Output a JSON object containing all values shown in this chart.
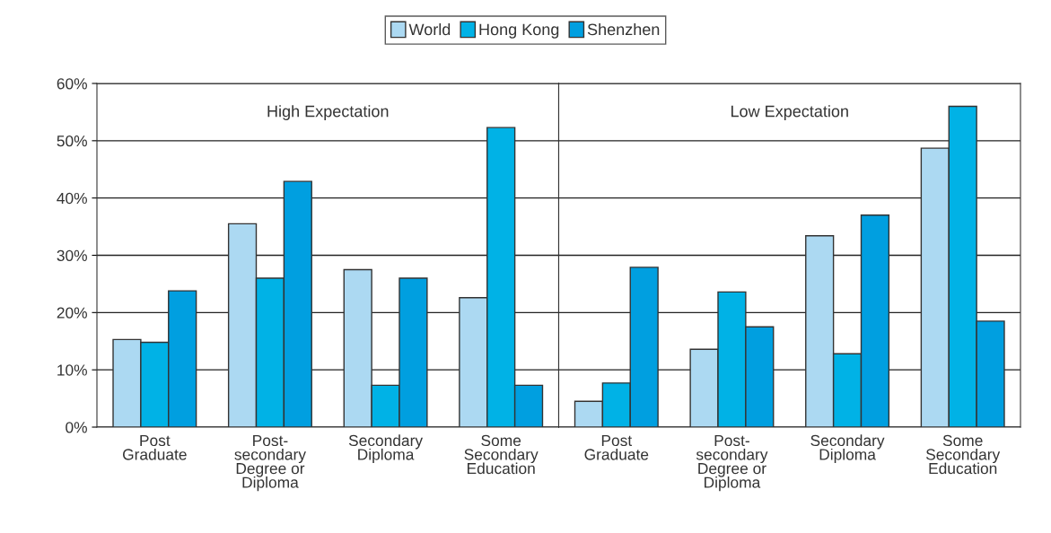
{
  "chart_data": [
    {
      "type": "bar",
      "title": "High Expectation",
      "categories": [
        "Post\nGraduate",
        "Post-\nsecondary\nDegree or\nDiploma",
        "Secondary\nDiploma",
        "Some\nSecondary\nEducation"
      ],
      "series": [
        {
          "name": "World",
          "color": "#acd9f2",
          "values": [
            15.3,
            35.5,
            27.5,
            22.6
          ]
        },
        {
          "name": "Hong Kong",
          "color": "#00b2e6",
          "values": [
            14.8,
            26.0,
            7.3,
            52.3
          ]
        },
        {
          "name": "Shenzhen",
          "color": "#009fe0",
          "values": [
            23.8,
            42.9,
            26.0,
            7.3
          ]
        }
      ],
      "ylim": [
        0,
        60
      ],
      "yticks": [
        {
          "value": 0,
          "label": "0%"
        },
        {
          "value": 10,
          "label": "10%"
        },
        {
          "value": 20,
          "label": "20%"
        },
        {
          "value": 30,
          "label": "30%"
        },
        {
          "value": 40,
          "label": "40%"
        },
        {
          "value": 50,
          "label": "50%"
        },
        {
          "value": 60,
          "label": "60%"
        }
      ],
      "grid": "y",
      "legend": "top"
    },
    {
      "type": "bar",
      "title": "Low Expectation",
      "categories": [
        "Post\nGraduate",
        "Post-\nsecondary\nDegree or\nDiploma",
        "Secondary\nDiploma",
        "Some\nSecondary\nEducation"
      ],
      "series": [
        {
          "color": "#acd9f2",
          "values": [
            4.5,
            13.6,
            33.4,
            48.7
          ]
        },
        {
          "color": "#00b2e6",
          "values": [
            7.7,
            23.6,
            12.8,
            56.0
          ]
        },
        {
          "color": "#009fe0",
          "values": [
            27.9,
            17.5,
            37.0,
            18.5
          ]
        }
      ],
      "ylim": [
        0,
        60
      ],
      "yticks": [
        {
          "value": 0,
          "label": null
        },
        {
          "value": 10,
          "label": null
        },
        {
          "value": 20,
          "label": null
        },
        {
          "value": 30,
          "label": null
        },
        {
          "value": 40,
          "label": null
        },
        {
          "value": 50,
          "label": null
        },
        {
          "value": 60,
          "label": null
        }
      ],
      "grid": "y",
      "tick_labels": "x"
    }
  ]
}
